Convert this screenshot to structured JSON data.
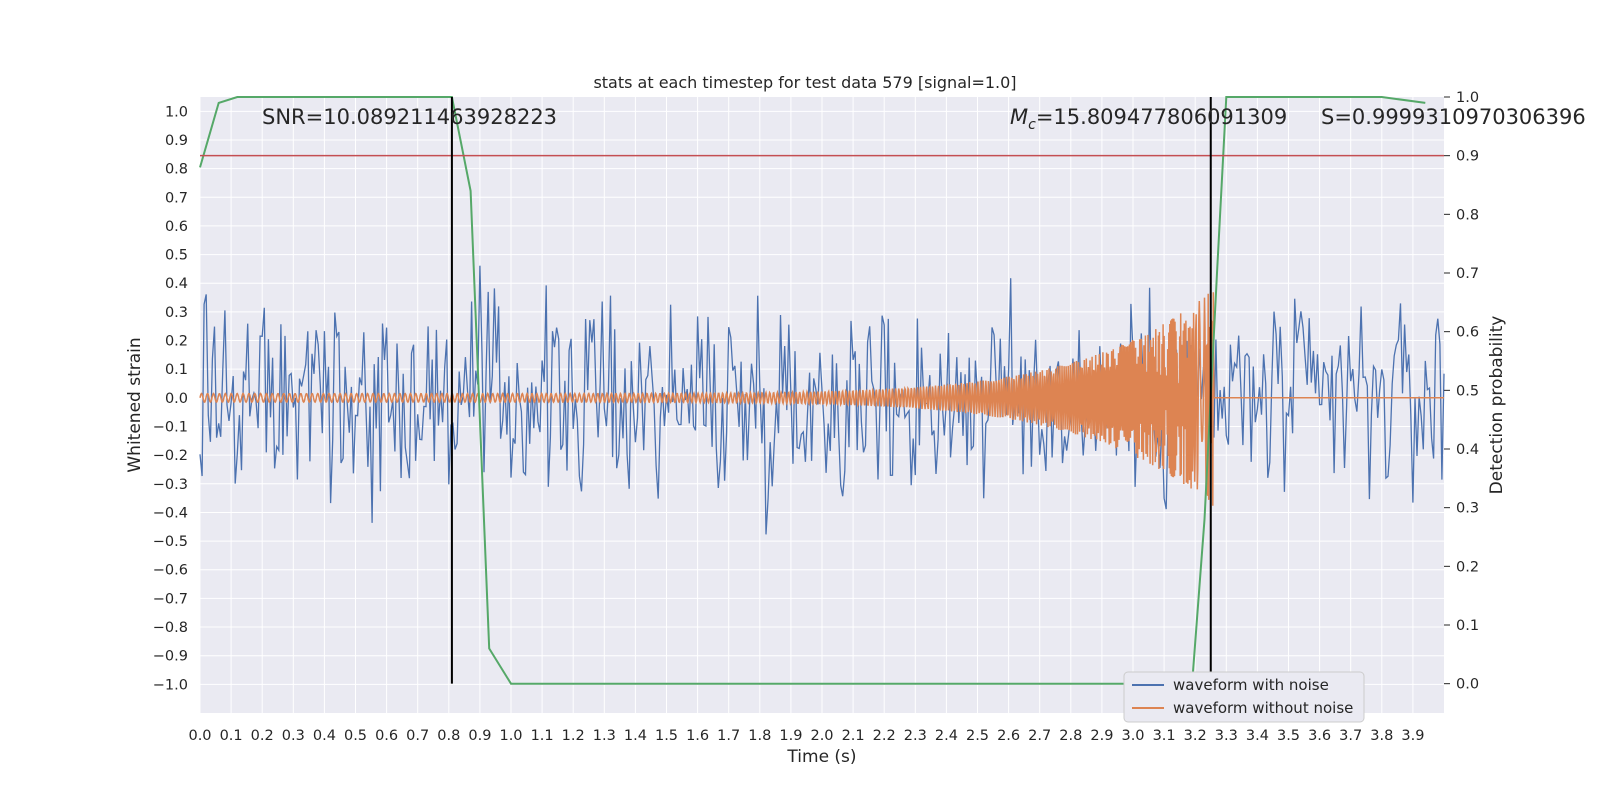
{
  "chart_data": {
    "type": "line",
    "title": "stats at each timestep for test data 579 [signal=1.0]",
    "xlabel": "Time (s)",
    "ylabel": "Whitened strain",
    "y2label": "Detection probability",
    "xlim": [
      0.0,
      4.0
    ],
    "ylim": [
      -1.1,
      1.05
    ],
    "y2lim": [
      -0.05,
      1.0
    ],
    "grid": true,
    "legend_position": "lower right",
    "xticks": [
      0.0,
      0.1,
      0.2,
      0.3,
      0.4,
      0.5,
      0.6,
      0.7,
      0.8,
      0.9,
      1.0,
      1.1,
      1.2,
      1.3,
      1.4,
      1.5,
      1.6,
      1.7,
      1.8,
      1.9,
      2.0,
      2.1,
      2.2,
      2.3,
      2.4,
      2.5,
      2.6,
      2.7,
      2.8,
      2.9,
      3.0,
      3.1,
      3.2,
      3.3,
      3.4,
      3.5,
      3.6,
      3.7,
      3.8,
      3.9
    ],
    "yticks": [
      1.0,
      0.9,
      0.8,
      0.7,
      0.6,
      0.5,
      0.4,
      0.3,
      0.2,
      0.1,
      0.0,
      -0.1,
      -0.2,
      -0.3,
      -0.4,
      -0.5,
      -0.6,
      -0.7,
      -0.8,
      -0.9,
      -1.0
    ],
    "y2ticks": [
      1.0,
      0.9,
      0.8,
      0.7,
      0.6,
      0.5,
      0.4,
      0.3,
      0.2,
      0.1,
      0.0
    ],
    "annotations": {
      "snr": "SNR=10.089211463928223",
      "mc_symbol": "M",
      "mc_sub": "c",
      "mc_value": "=15.809477806091309",
      "s": "S=0.9999310970306396"
    },
    "threshold": 0.9,
    "vertical_lines": [
      0.81,
      3.25
    ],
    "series": [
      {
        "name": "waveform with noise",
        "color": "#4c72b0",
        "axis": "left",
        "noise_amplitude": 0.62,
        "sample_count": 600
      },
      {
        "name": "waveform without noise",
        "color": "#dd8452",
        "axis": "left",
        "chirp_end": 3.26,
        "amplitude_start": 0.015,
        "amplitude_peak": 0.38
      },
      {
        "name": "detection probability",
        "color": "#55a868",
        "axis": "right",
        "x": [
          0.0,
          0.06,
          0.12,
          0.2,
          0.4,
          0.6,
          0.8,
          0.81,
          0.87,
          0.93,
          1.0,
          1.1,
          1.5,
          2.0,
          2.5,
          3.0,
          3.1,
          3.19,
          3.23,
          3.27,
          3.3,
          3.5,
          3.8,
          3.94
        ],
        "y": [
          0.88,
          0.99,
          1.0,
          1.0,
          1.0,
          1.0,
          1.0,
          1.0,
          0.84,
          0.06,
          0.0,
          0.0,
          0.0,
          0.0,
          0.0,
          0.0,
          0.0,
          0.0,
          0.28,
          0.7,
          1.0,
          1.0,
          1.0,
          0.99
        ]
      }
    ],
    "colors": {
      "background": "#eaeaf2",
      "grid": "#ffffff",
      "threshold": "#c44e52",
      "vline": "#000000"
    }
  }
}
